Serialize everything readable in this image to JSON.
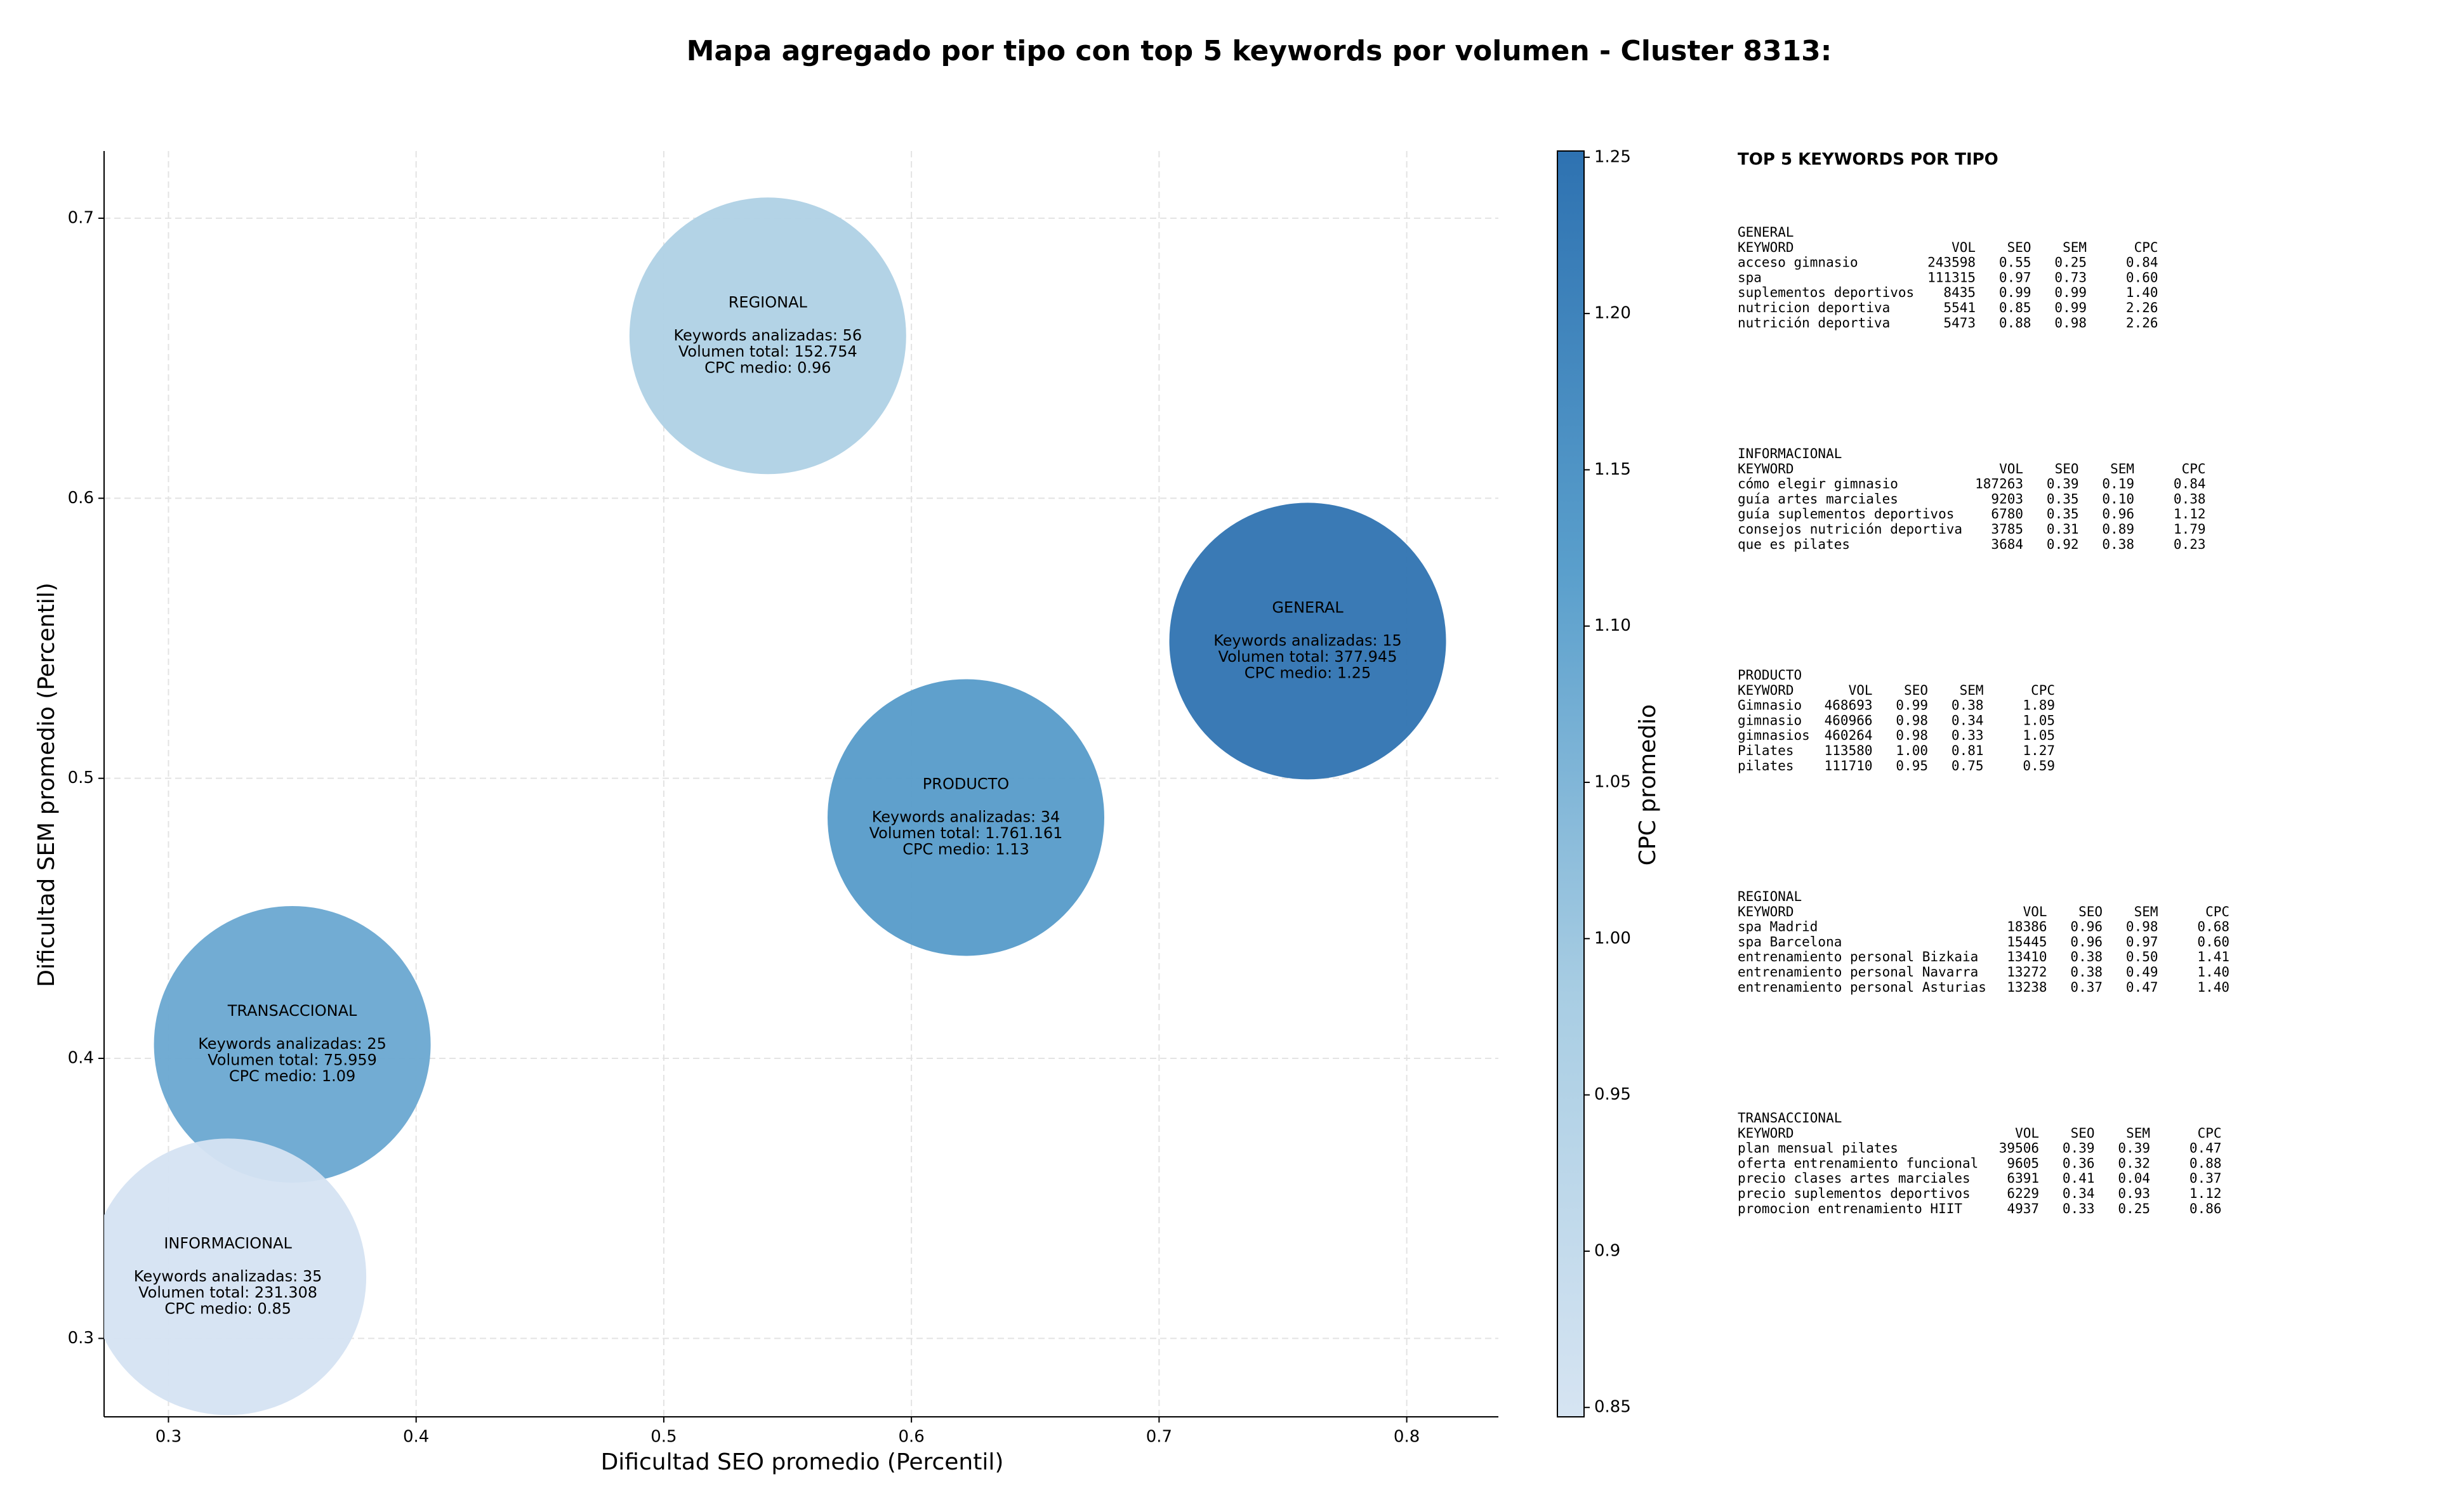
{
  "chart_data": {
    "type": "bubble",
    "title": "Mapa agregado por tipo con top 5 keywords por volumen - Cluster 8313:",
    "xlabel": "Dificultad SEO promedio (Percentil)",
    "ylabel": "Dificultad SEM promedio (Percentil)",
    "xlim": [
      0.274,
      0.837
    ],
    "ylim": [
      0.272,
      0.724
    ],
    "xticks": [
      0.3,
      0.4,
      0.5,
      0.6,
      0.7,
      0.8
    ],
    "yticks": [
      0.3,
      0.4,
      0.5,
      0.6,
      0.7
    ],
    "grid": true,
    "colorbar": {
      "label": "CPC promedio",
      "lim": [
        0.847,
        1.252
      ],
      "ticks": [
        0.85,
        0.9,
        0.95,
        {
          "value": 1.0,
          "label": "1.00"
        },
        1.05,
        {
          "value": 1.1,
          "label": "1.10"
        },
        1.15,
        {
          "value": 1.2,
          "label": "1.20"
        },
        1.25
      ],
      "colors": [
        "#d6e4f2",
        "#a8cde3",
        "#5a9fcc",
        "#2e72b1"
      ]
    },
    "points": [
      {
        "name": "REGIONAL",
        "x": 0.542,
        "y": 0.658,
        "cpc": 0.96,
        "lines": [
          "Keywords analizadas: 56",
          "Volumen total: 152.754",
          "CPC medio: 0.96"
        ]
      },
      {
        "name": "GENERAL",
        "x": 0.76,
        "y": 0.549,
        "cpc": 1.25,
        "lines": [
          "Keywords analizadas: 15",
          "Volumen total: 377.945",
          "CPC medio: 1.25"
        ]
      },
      {
        "name": "PRODUCTO",
        "x": 0.622,
        "y": 0.486,
        "cpc": 1.13,
        "lines": [
          "Keywords analizadas: 34",
          "Volumen total: 1.761.161",
          "CPC medio: 1.13"
        ]
      },
      {
        "name": "TRANSACCIONAL",
        "x": 0.35,
        "y": 0.405,
        "cpc": 1.09,
        "lines": [
          "Keywords analizadas: 25",
          "Volumen total: 75.959",
          "CPC medio: 1.09"
        ]
      },
      {
        "name": "INFORMACIONAL",
        "x": 0.324,
        "y": 0.322,
        "cpc": 0.85,
        "lines": [
          "Keywords analizadas: 35",
          "Volumen total: 231.308",
          "CPC medio: 0.85"
        ]
      }
    ]
  },
  "side_panel": {
    "heading": "TOP 5 KEYWORDS POR TIPO",
    "columns": [
      "KEYWORD",
      "VOL",
      "SEO",
      "SEM",
      "CPC"
    ],
    "tables": [
      {
        "name": "GENERAL",
        "rows": [
          [
            "acceso gimnasio",
            "243598",
            "0.55",
            "0.25",
            "0.84"
          ],
          [
            "spa",
            "111315",
            "0.97",
            "0.73",
            "0.60"
          ],
          [
            "suplementos deportivos",
            "8435",
            "0.99",
            "0.99",
            "1.40"
          ],
          [
            "nutricion deportiva",
            "5541",
            "0.85",
            "0.99",
            "2.26"
          ],
          [
            "nutrición deportiva",
            "5473",
            "0.88",
            "0.98",
            "2.26"
          ]
        ]
      },
      {
        "name": "INFORMACIONAL",
        "rows": [
          [
            "cómo elegir gimnasio",
            "187263",
            "0.39",
            "0.19",
            "0.84"
          ],
          [
            "guía artes marciales",
            "9203",
            "0.35",
            "0.10",
            "0.38"
          ],
          [
            "guía suplementos deportivos",
            "6780",
            "0.35",
            "0.96",
            "1.12"
          ],
          [
            "consejos nutrición deportiva",
            "3785",
            "0.31",
            "0.89",
            "1.79"
          ],
          [
            "que es pilates",
            "3684",
            "0.92",
            "0.38",
            "0.23"
          ]
        ]
      },
      {
        "name": "PRODUCTO",
        "rows": [
          [
            "Gimnasio",
            "468693",
            "0.99",
            "0.38",
            "1.89"
          ],
          [
            "gimnasio",
            "460966",
            "0.98",
            "0.34",
            "1.05"
          ],
          [
            "gimnasios",
            "460264",
            "0.98",
            "0.33",
            "1.05"
          ],
          [
            "Pilates",
            "113580",
            "1.00",
            "0.81",
            "1.27"
          ],
          [
            "pilates",
            "111710",
            "0.95",
            "0.75",
            "0.59"
          ]
        ]
      },
      {
        "name": "REGIONAL",
        "rows": [
          [
            "spa Madrid",
            "18386",
            "0.96",
            "0.98",
            "0.68"
          ],
          [
            "spa Barcelona",
            "15445",
            "0.96",
            "0.97",
            "0.60"
          ],
          [
            "entrenamiento personal Bizkaia",
            "13410",
            "0.38",
            "0.50",
            "1.41"
          ],
          [
            "entrenamiento personal Navarra",
            "13272",
            "0.38",
            "0.49",
            "1.40"
          ],
          [
            "entrenamiento personal Asturias",
            "13238",
            "0.37",
            "0.47",
            "1.40"
          ]
        ]
      },
      {
        "name": "TRANSACCIONAL",
        "rows": [
          [
            "plan mensual pilates",
            "39506",
            "0.39",
            "0.39",
            "0.47"
          ],
          [
            "oferta entrenamiento funcional",
            "9605",
            "0.36",
            "0.32",
            "0.88"
          ],
          [
            "precio clases artes marciales",
            "6391",
            "0.41",
            "0.04",
            "0.37"
          ],
          [
            "precio suplementos deportivos",
            "6229",
            "0.34",
            "0.93",
            "1.12"
          ],
          [
            "promocion entrenamiento HIIT",
            "4937",
            "0.33",
            "0.25",
            "0.86"
          ]
        ]
      }
    ]
  }
}
